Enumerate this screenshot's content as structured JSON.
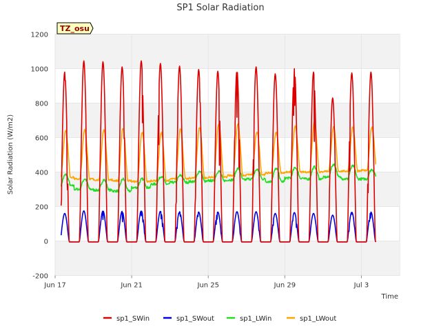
{
  "chart_data": {
    "type": "line",
    "title": "SP1 Solar Radiation",
    "xlabel": "Time",
    "ylabel": "Solar Radiation (W/m2)",
    "site_tag": "TZ_osu",
    "ylim": [
      -200,
      1200
    ],
    "yticks": [
      -200,
      0,
      200,
      400,
      600,
      800,
      1000,
      1200
    ],
    "xlim": [
      "2018-06-17",
      "2018-07-05"
    ],
    "xticks": [
      {
        "date": "2018-06-17",
        "label": "Jun 17"
      },
      {
        "date": "2018-06-21",
        "label": "Jun 21"
      },
      {
        "date": "2018-06-25",
        "label": "Jun 25"
      },
      {
        "date": "2018-06-29",
        "label": "Jun 29"
      },
      {
        "date": "2018-07-03",
        "label": "Jul 3"
      }
    ],
    "grid": true,
    "legend_position": "bottom",
    "days": [
      "2018-06-17",
      "2018-06-18",
      "2018-06-19",
      "2018-06-20",
      "2018-06-21",
      "2018-06-22",
      "2018-06-23",
      "2018-06-24",
      "2018-06-25",
      "2018-06-26",
      "2018-06-27",
      "2018-06-28",
      "2018-06-29",
      "2018-06-30",
      "2018-07-01",
      "2018-07-02",
      "2018-07-03"
    ],
    "series": [
      {
        "name": "sp1_SWin",
        "color": "#dd0000",
        "night": -5,
        "daily_peak": [
          980,
          1045,
          1040,
          1010,
          1045,
          1030,
          1015,
          995,
          985,
          990,
          1010,
          970,
          1000,
          980,
          830,
          975,
          980
        ]
      },
      {
        "name": "sp1_SWout",
        "color": "#0000dd",
        "night": -5,
        "daily_peak": [
          160,
          175,
          175,
          172,
          175,
          172,
          170,
          168,
          168,
          170,
          170,
          160,
          165,
          160,
          150,
          168,
          168
        ]
      },
      {
        "name": "sp1_LWin",
        "color": "#22dd22",
        "daily_min": [
          320,
          300,
          295,
          290,
          310,
          330,
          340,
          345,
          350,
          355,
          360,
          345,
          365,
          360,
          370,
          360,
          360
        ],
        "daily_max": [
          385,
          360,
          355,
          360,
          360,
          375,
          380,
          405,
          405,
          420,
          415,
          420,
          425,
          430,
          445,
          435,
          415
        ]
      },
      {
        "name": "sp1_LWout",
        "color": "#ffa500",
        "daily_min": [
          370,
          360,
          355,
          350,
          345,
          350,
          360,
          365,
          370,
          380,
          385,
          395,
          400,
          400,
          405,
          405,
          410
        ],
        "daily_max": [
          640,
          645,
          645,
          655,
          630,
          630,
          655,
          660,
          680,
          680,
          635,
          630,
          665,
          690,
          660,
          660,
          660
        ]
      }
    ]
  }
}
